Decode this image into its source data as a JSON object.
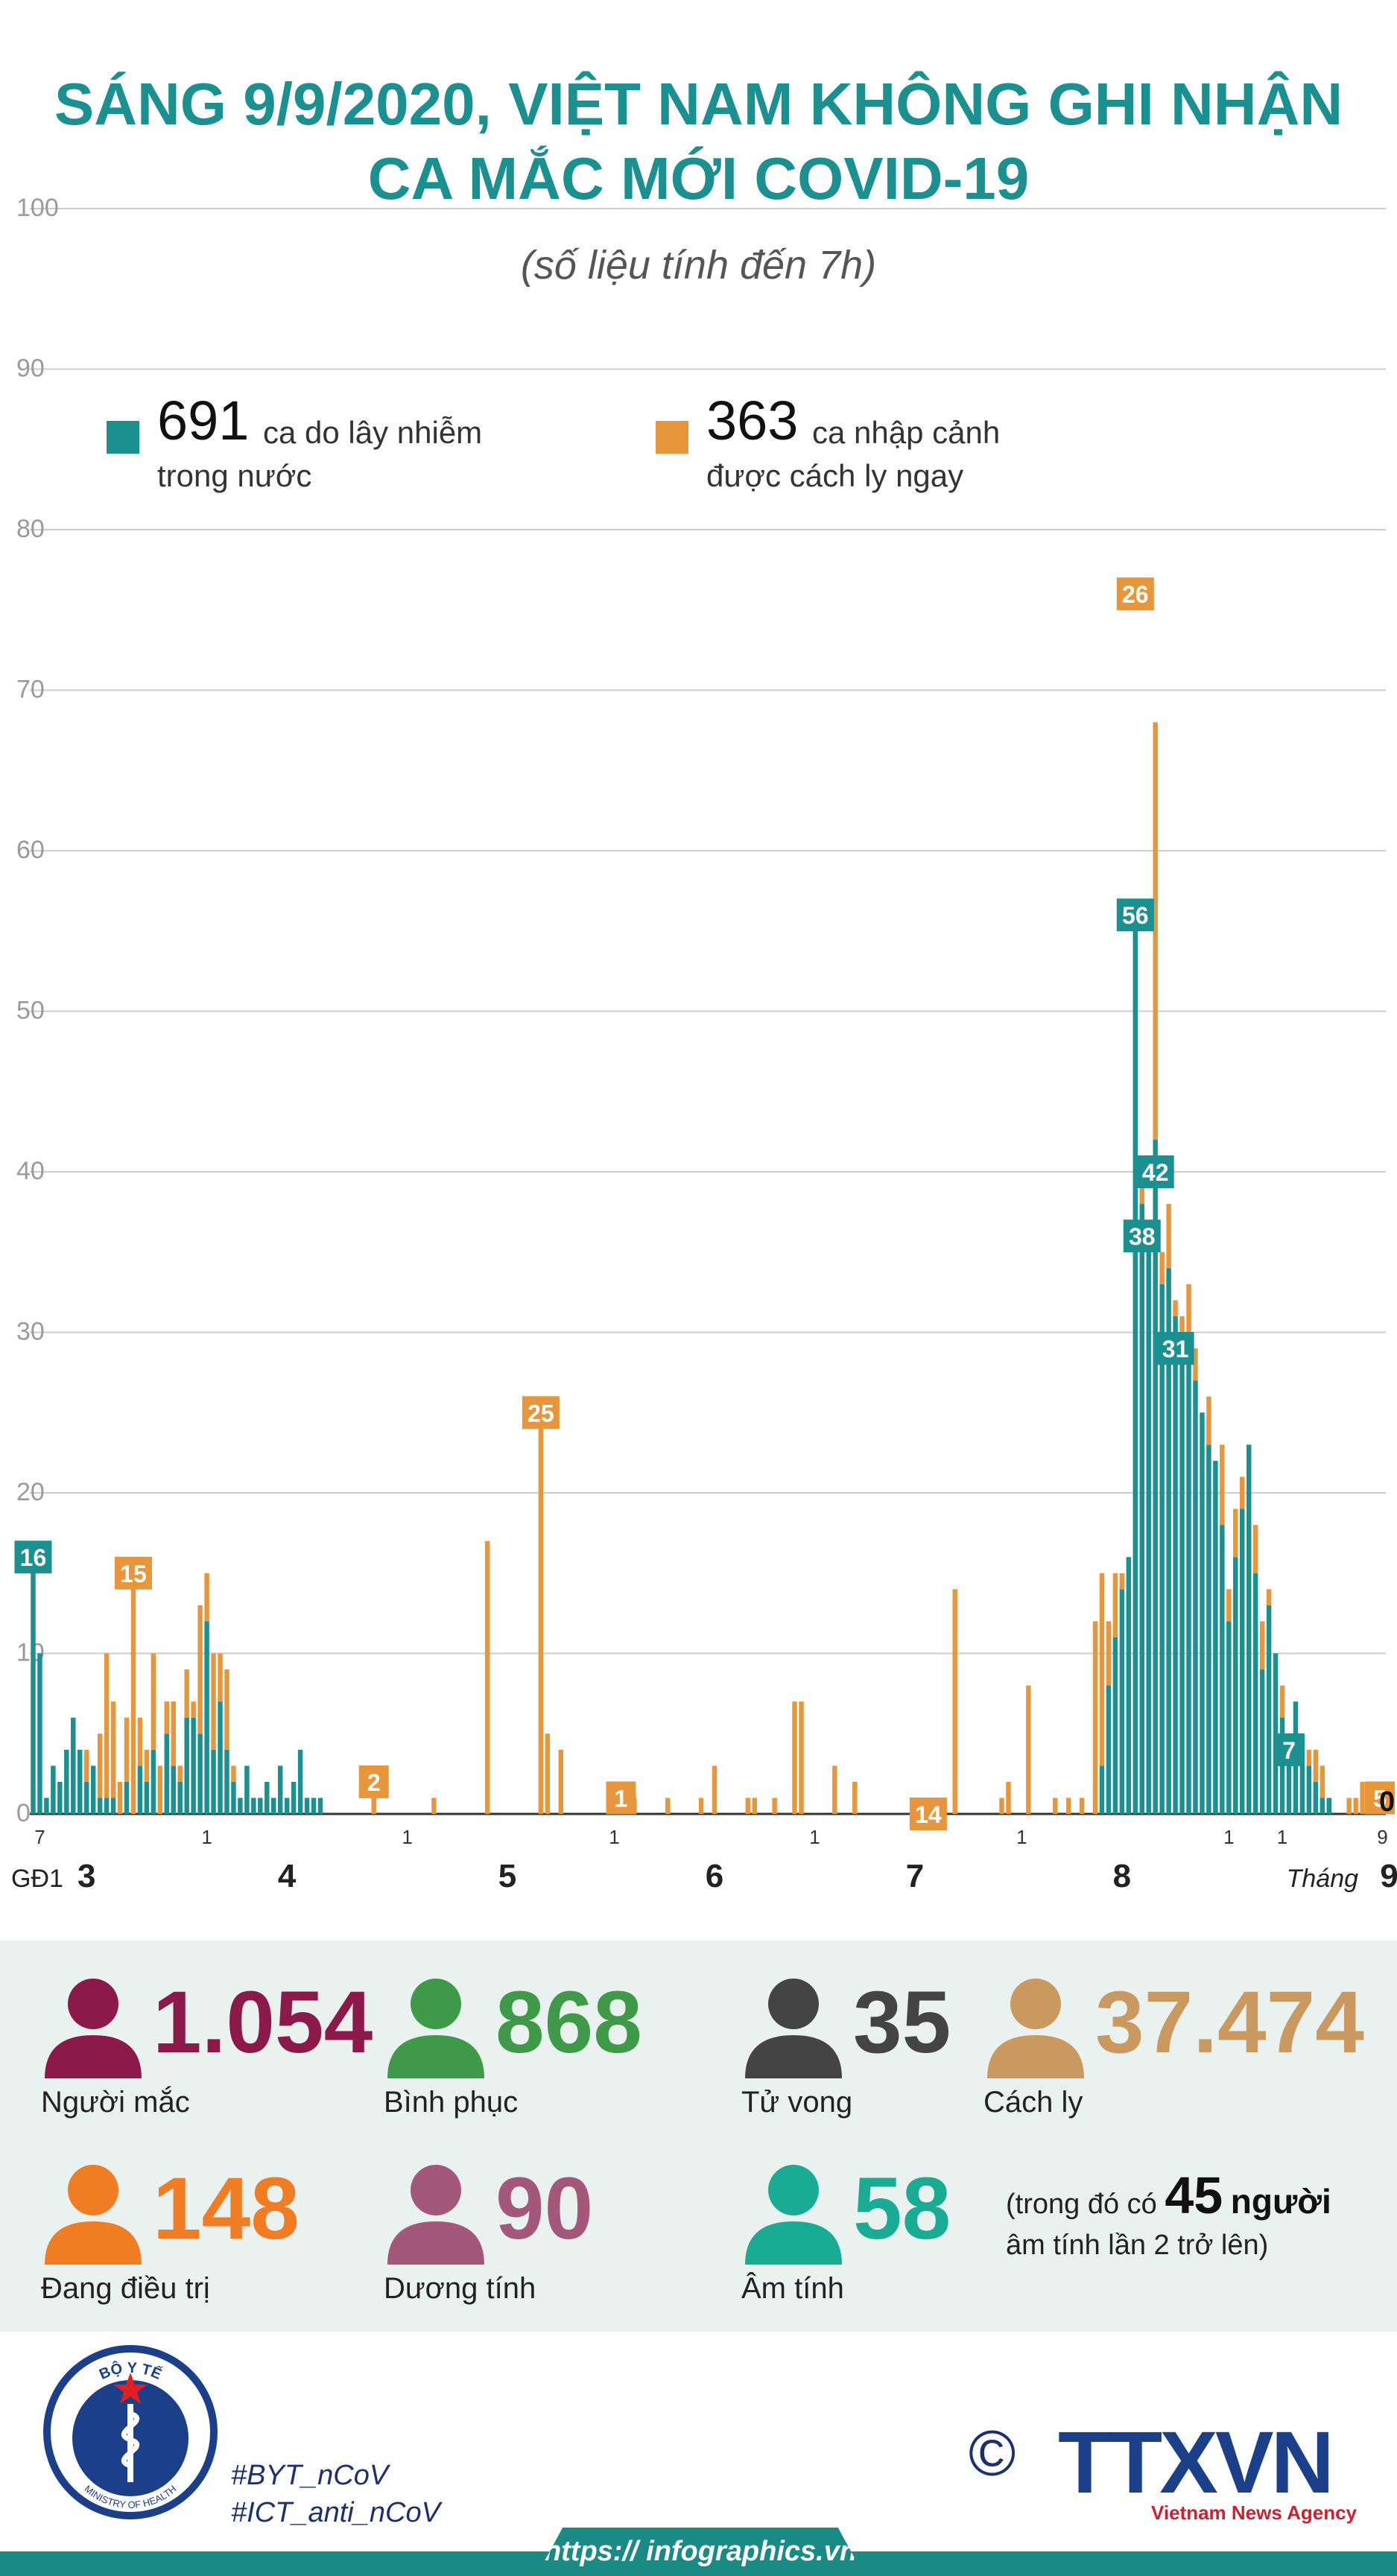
{
  "title_line1": "SÁNG 9/9/2020, VIỆT NAM KHÔNG GHI NHẬN",
  "title_line2": "CA MẮC MỚI COVID-19",
  "subtitle": "(số liệu tính đến 7h)",
  "colors": {
    "domestic": "#1a9090",
    "imported": "#e8963c",
    "title": "#1a9090"
  },
  "legend": {
    "domestic": {
      "value": "691",
      "text1": "ca do lây nhiễm",
      "text2": "trong nước"
    },
    "imported": {
      "value": "363",
      "text1": "ca nhập cảnh",
      "text2": "được cách ly ngay"
    }
  },
  "chart_data": {
    "type": "bar",
    "stacked": true,
    "ylim": [
      0,
      100
    ],
    "y_ticks": [
      0,
      10,
      20,
      30,
      40,
      50,
      60,
      70,
      80,
      90,
      100
    ],
    "grid": true,
    "series": [
      {
        "name": "ca do lây nhiễm trong nước",
        "values": [
          16,
          10,
          1,
          3,
          2,
          4,
          6,
          4,
          2,
          3,
          1,
          1,
          1,
          0,
          2,
          0,
          3,
          2,
          4,
          0,
          5,
          3,
          2,
          6,
          6,
          5,
          12,
          4,
          7,
          4,
          2,
          1,
          3,
          1,
          1,
          2,
          1,
          3,
          1,
          2,
          4,
          1,
          1,
          1,
          0,
          0,
          0,
          0,
          0,
          0,
          0,
          0,
          0,
          0,
          0,
          0,
          0,
          0,
          0,
          0,
          0,
          0,
          0,
          0,
          0,
          0,
          0,
          0,
          0,
          0,
          0,
          0,
          0,
          0,
          0,
          0,
          0,
          0,
          0,
          0,
          0,
          0,
          0,
          0,
          0,
          0,
          0,
          0,
          0,
          0,
          0,
          0,
          0,
          0,
          0,
          0,
          0,
          0,
          0,
          0,
          0,
          0,
          0,
          0,
          0,
          0,
          0,
          0,
          0,
          0,
          0,
          0,
          0,
          0,
          0,
          0,
          0,
          0,
          0,
          0,
          0,
          0,
          0,
          0,
          0,
          0,
          0,
          0,
          0,
          0,
          0,
          0,
          0,
          0,
          0,
          0,
          0,
          0,
          0,
          0,
          0,
          0,
          0,
          0,
          0,
          0,
          0,
          0,
          0,
          0,
          0,
          0,
          0,
          0,
          0,
          0,
          0,
          0,
          0,
          0,
          3,
          8,
          11,
          14,
          16,
          56,
          38,
          36,
          42,
          33,
          34,
          31,
          30,
          29,
          27,
          25,
          23,
          22,
          18,
          12,
          16,
          19,
          23,
          15,
          9,
          13,
          10,
          6,
          4,
          7,
          5,
          3,
          2,
          1,
          1,
          0,
          0,
          0,
          0,
          0,
          0,
          0,
          0
        ]
      },
      {
        "name": "ca nhập cảnh được cách ly ngay",
        "values": [
          0,
          0,
          0,
          0,
          0,
          0,
          0,
          0,
          2,
          0,
          4,
          9,
          6,
          2,
          4,
          15,
          3,
          2,
          6,
          3,
          2,
          4,
          1,
          3,
          1,
          8,
          3,
          6,
          3,
          5,
          1,
          0,
          0,
          0,
          0,
          0,
          0,
          0,
          0,
          0,
          0,
          0,
          0,
          0,
          0,
          0,
          0,
          0,
          0,
          0,
          0,
          2,
          0,
          0,
          0,
          0,
          0,
          0,
          0,
          0,
          1,
          0,
          0,
          0,
          0,
          0,
          0,
          0,
          17,
          0,
          0,
          0,
          0,
          0,
          0,
          0,
          25,
          5,
          0,
          4,
          0,
          0,
          0,
          0,
          0,
          0,
          0,
          0,
          1,
          1,
          1,
          0,
          0,
          0,
          0,
          1,
          0,
          0,
          0,
          0,
          1,
          0,
          3,
          0,
          0,
          0,
          0,
          1,
          1,
          0,
          0,
          1,
          0,
          0,
          7,
          7,
          0,
          0,
          0,
          0,
          3,
          0,
          0,
          2,
          0,
          0,
          0,
          0,
          0,
          0,
          0,
          0,
          0,
          0,
          0,
          0,
          0,
          0,
          14,
          0,
          0,
          0,
          0,
          0,
          0,
          1,
          2,
          0,
          0,
          8,
          0,
          0,
          0,
          1,
          0,
          1,
          0,
          1,
          0,
          12,
          12,
          4,
          4,
          1,
          0,
          0,
          1,
          0,
          26,
          2,
          4,
          1,
          1,
          4,
          2,
          0,
          3,
          0,
          5,
          2,
          3,
          2,
          0,
          3,
          3,
          1,
          0,
          2,
          1,
          0,
          0,
          1,
          2,
          2,
          0,
          0,
          0,
          1,
          1,
          2,
          1,
          0,
          1,
          2,
          0,
          1,
          0,
          3,
          5,
          0
        ]
      }
    ],
    "value_labels": [
      {
        "index": 0,
        "text": "16",
        "series": "domestic"
      },
      {
        "index": 15,
        "text": "15",
        "series": "imported"
      },
      {
        "index": 51,
        "text": "2",
        "series": "imported"
      },
      {
        "index": 76,
        "text": "25",
        "series": "imported"
      },
      {
        "index": 88,
        "text": "1",
        "series": "imported"
      },
      {
        "index": 134,
        "text": "14",
        "series": "imported"
      },
      {
        "index": 165,
        "text": "56",
        "series": "domestic"
      },
      {
        "index": 165,
        "text": "26",
        "series": "imported"
      },
      {
        "index": 166,
        "text": "38",
        "series": "domestic"
      },
      {
        "index": 168,
        "text": "42",
        "series": "domestic"
      },
      {
        "index": 171,
        "text": "31",
        "series": "domestic"
      },
      {
        "index": 188,
        "text": "7",
        "series": "domestic"
      },
      {
        "index": 202,
        "text": "5",
        "series": "imported"
      },
      {
        "index": 202,
        "text": "0",
        "series": "domestic"
      }
    ],
    "day_ticks": [
      {
        "index": 1,
        "text": "7"
      },
      {
        "index": 26,
        "text": "1"
      },
      {
        "index": 56,
        "text": "1"
      },
      {
        "index": 87,
        "text": "1"
      },
      {
        "index": 117,
        "text": "1"
      },
      {
        "index": 148,
        "text": "1"
      },
      {
        "index": 179,
        "text": "1"
      },
      {
        "index": 187,
        "text": "1"
      },
      {
        "index": 202,
        "text": "9"
      }
    ],
    "month_labels": [
      {
        "index": 0,
        "text": "GĐ1",
        "bold": false
      },
      {
        "index": 8,
        "text": "3",
        "bold": true
      },
      {
        "index": 38,
        "text": "4",
        "bold": true
      },
      {
        "index": 71,
        "text": "5",
        "bold": true
      },
      {
        "index": 102,
        "text": "6",
        "bold": true
      },
      {
        "index": 132,
        "text": "7",
        "bold": true
      },
      {
        "index": 163,
        "text": "8",
        "bold": true
      },
      {
        "index": 193,
        "text": "Tháng",
        "bold": false,
        "italic": true
      },
      {
        "index": 203,
        "text": "9",
        "bold": true
      }
    ]
  },
  "stats": [
    {
      "value": "1.054",
      "label": "Người mắc",
      "color": "#8b1a4a"
    },
    {
      "value": "868",
      "label": "Bình phục",
      "color": "#3e9a48"
    },
    {
      "value": "35",
      "label": "Tử vong",
      "color": "#444444"
    },
    {
      "value": "37.474",
      "label": "Cách ly",
      "color": "#c9995f"
    },
    {
      "value": "148",
      "label": "Đang điều trị",
      "color": "#f07d24"
    },
    {
      "value": "90",
      "label": "Dương tính",
      "color": "#a3577a"
    },
    {
      "value": "58",
      "label": "Âm tính",
      "color": "#1aab95"
    }
  ],
  "note": {
    "prefix": "(trong đó có",
    "number": "45",
    "suffix": "người",
    "line2": "âm tính lần 2 trở lên)"
  },
  "footer": {
    "hashtag1": "#BYT_nCoV",
    "hashtag2": "#ICT_anti_nCoV",
    "url": "https:// infographics.vn",
    "copyright": "©",
    "moh_top": "BỘ Y TẾ",
    "moh_bottom": "MINISTRY OF HEALTH",
    "ttxvn": "TTXVN",
    "ttxvn_sub": "Vietnam News Agency"
  }
}
